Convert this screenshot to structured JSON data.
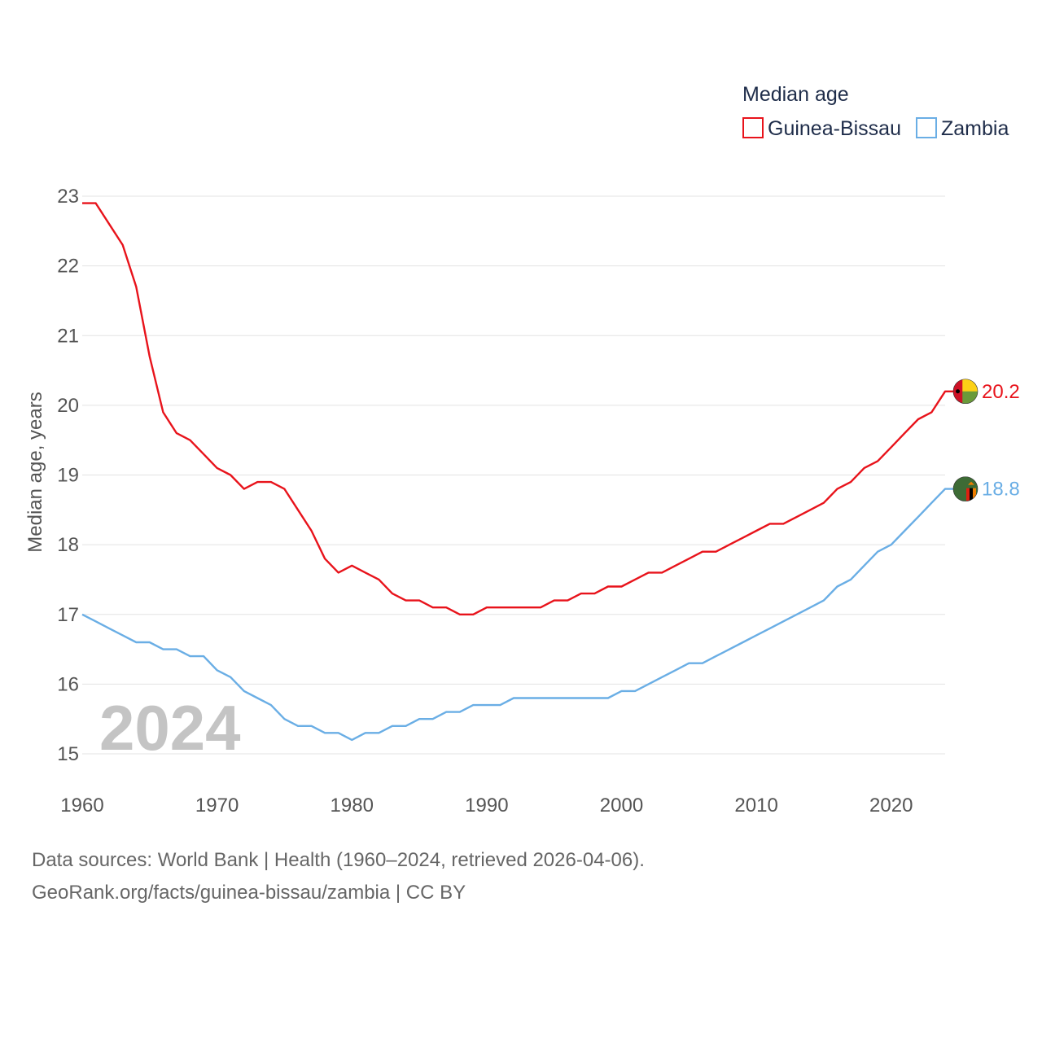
{
  "chart_data": {
    "type": "line",
    "title": "Median age",
    "ylabel": "Median age, years",
    "xlabel": "",
    "xlim": [
      1960,
      2024
    ],
    "ylim": [
      15,
      23
    ],
    "yticks": [
      15,
      16,
      17,
      18,
      19,
      20,
      21,
      22,
      23
    ],
    "xticks": [
      1960,
      1970,
      1980,
      1990,
      2000,
      2010,
      2020
    ],
    "grid": true,
    "legend_position": "top-right",
    "current_year": "2024",
    "x": [
      1960,
      1961,
      1962,
      1963,
      1964,
      1965,
      1966,
      1967,
      1968,
      1969,
      1970,
      1971,
      1972,
      1973,
      1974,
      1975,
      1976,
      1977,
      1978,
      1979,
      1980,
      1981,
      1982,
      1983,
      1984,
      1985,
      1986,
      1987,
      1988,
      1989,
      1990,
      1991,
      1992,
      1993,
      1994,
      1995,
      1996,
      1997,
      1998,
      1999,
      2000,
      2001,
      2002,
      2003,
      2004,
      2005,
      2006,
      2007,
      2008,
      2009,
      2010,
      2011,
      2012,
      2013,
      2014,
      2015,
      2016,
      2017,
      2018,
      2019,
      2020,
      2021,
      2022,
      2023,
      2024
    ],
    "series": [
      {
        "name": "Guinea-Bissau",
        "color": "#e8131b",
        "end_label": "20.2",
        "flag": "guinea-bissau-flag",
        "values": [
          22.9,
          22.9,
          22.6,
          22.3,
          21.7,
          20.7,
          19.9,
          19.6,
          19.5,
          19.3,
          19.1,
          19.0,
          18.8,
          18.9,
          18.9,
          18.8,
          18.5,
          18.2,
          17.8,
          17.6,
          17.7,
          17.6,
          17.5,
          17.3,
          17.2,
          17.2,
          17.1,
          17.1,
          17.0,
          17.0,
          17.1,
          17.1,
          17.1,
          17.1,
          17.1,
          17.2,
          17.2,
          17.3,
          17.3,
          17.4,
          17.4,
          17.5,
          17.6,
          17.6,
          17.7,
          17.8,
          17.9,
          17.9,
          18.0,
          18.1,
          18.2,
          18.3,
          18.3,
          18.4,
          18.5,
          18.6,
          18.8,
          18.9,
          19.1,
          19.2,
          19.4,
          19.6,
          19.8,
          19.9,
          20.2
        ]
      },
      {
        "name": "Zambia",
        "color": "#6aaee5",
        "end_label": "18.8",
        "flag": "zambia-flag",
        "values": [
          17.0,
          16.9,
          16.8,
          16.7,
          16.6,
          16.6,
          16.5,
          16.5,
          16.4,
          16.4,
          16.2,
          16.1,
          15.9,
          15.8,
          15.7,
          15.5,
          15.4,
          15.4,
          15.3,
          15.3,
          15.2,
          15.3,
          15.3,
          15.4,
          15.4,
          15.5,
          15.5,
          15.6,
          15.6,
          15.7,
          15.7,
          15.7,
          15.8,
          15.8,
          15.8,
          15.8,
          15.8,
          15.8,
          15.8,
          15.8,
          15.9,
          15.9,
          16.0,
          16.1,
          16.2,
          16.3,
          16.3,
          16.4,
          16.5,
          16.6,
          16.7,
          16.8,
          16.9,
          17.0,
          17.1,
          17.2,
          17.4,
          17.5,
          17.7,
          17.9,
          18.0,
          18.2,
          18.4,
          18.6,
          18.8
        ]
      }
    ]
  },
  "footer": {
    "sources": "Data sources: World Bank | Health (1960–2024, retrieved 2026-04-06).",
    "credit": "GeoRank.org/facts/guinea-bissau/zambia | CC BY"
  }
}
